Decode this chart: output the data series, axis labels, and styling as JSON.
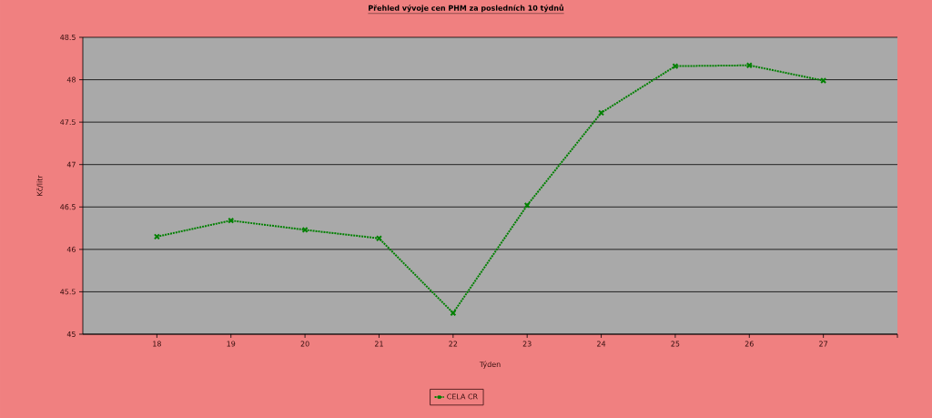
{
  "chart_data": {
    "type": "line",
    "title": "Přehled vývoje cen PHM za posledních 10 týdnů",
    "xlabel": "Týden",
    "ylabel": "Kč/litr",
    "x": [
      18,
      19,
      20,
      21,
      22,
      23,
      24,
      25,
      26,
      27
    ],
    "series": [
      {
        "name": "CELA CR",
        "color": "#008000",
        "values": [
          46.15,
          46.34,
          46.23,
          46.13,
          45.25,
          46.52,
          47.61,
          48.16,
          48.17,
          47.99
        ]
      }
    ],
    "xlim": [
      17,
      28
    ],
    "xticks": [
      18,
      19,
      20,
      21,
      22,
      23,
      24,
      25,
      26,
      27,
      {
        "value": 28,
        "label": null
      }
    ],
    "ylim": [
      45,
      48.5
    ],
    "yticks": [
      45,
      45.5,
      46,
      46.5,
      47,
      47.5,
      48,
      48.5
    ],
    "grid": "y",
    "legend": "bottom",
    "marker": "cross",
    "line_style": "dotted"
  }
}
